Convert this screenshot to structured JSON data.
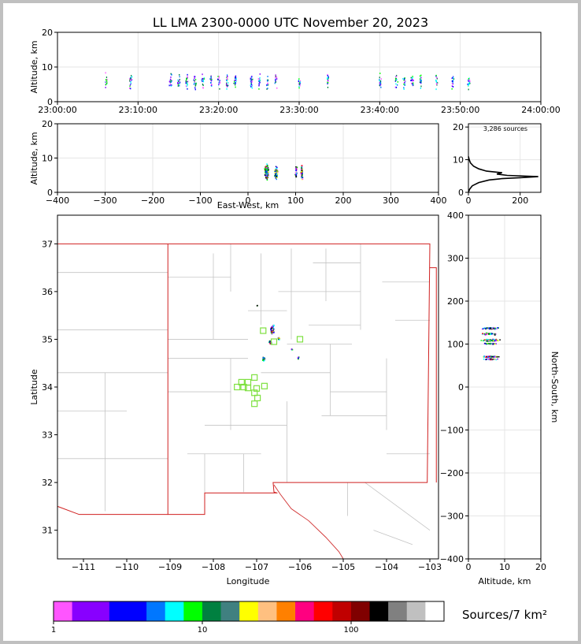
{
  "title": "LL LMA 2300-0000 UTC November 20, 2023",
  "colorbar": {
    "label": "Sources/7 km²",
    "ticks": [
      1,
      10,
      100
    ],
    "colors": [
      "#ff55ff",
      "#8800ff",
      "#8800ff",
      "#0000ff",
      "#0000ff",
      "#0077ff",
      "#00ffff",
      "#00ff00",
      "#008040",
      "#408080",
      "#ffff00",
      "#ffc080",
      "#ff8000",
      "#ff0080",
      "#ff0000",
      "#c00000",
      "#800000",
      "#000000",
      "#808080",
      "#c0c0c0",
      "#ffffff"
    ]
  },
  "chart_data": [
    {
      "type": "scatter",
      "name": "time-height",
      "ylabel": "Altitude, km",
      "ylim": [
        0,
        20
      ],
      "yticks": [
        0,
        10,
        20
      ],
      "xticks": [
        "23:00:00",
        "23:10:00",
        "23:20:00",
        "23:30:00",
        "23:40:00",
        "23:50:00",
        "24:00:00"
      ],
      "xlim_minutes": [
        0,
        60
      ],
      "bursts_minutes": [
        6,
        9,
        14,
        15,
        16,
        17,
        18,
        19,
        20,
        21,
        22,
        24,
        25,
        26,
        27,
        30,
        33.5,
        40,
        42,
        43,
        44,
        45,
        47,
        49,
        51
      ]
    },
    {
      "type": "scatter",
      "name": "eastwest-height",
      "xlabel": "East-West, km",
      "ylabel": "Altitude, km",
      "xlim": [
        -400,
        400
      ],
      "xticks": [
        -400,
        -300,
        -200,
        -100,
        0,
        100,
        200,
        300,
        400
      ],
      "ylim": [
        0,
        20
      ],
      "yticks": [
        0,
        10,
        20
      ],
      "clusters_x_km": [
        35,
        60,
        100,
        110
      ]
    },
    {
      "type": "line",
      "name": "altitude-histogram",
      "annotation": "3,286 sources",
      "xlim": [
        0,
        280
      ],
      "xticks": [
        0,
        200
      ],
      "ylim": [
        0,
        21
      ],
      "yticks": [
        0,
        10,
        20
      ],
      "x": [
        0,
        5,
        15,
        40,
        80,
        130,
        200,
        270,
        150,
        110,
        130,
        70,
        40,
        20,
        8,
        3,
        0
      ],
      "y": [
        0,
        1,
        2,
        3,
        3.8,
        4.2,
        4.5,
        4.8,
        5.2,
        5.6,
        6.0,
        6.5,
        7.2,
        8.0,
        9.0,
        10,
        11
      ]
    },
    {
      "type": "scatter",
      "name": "plan-view",
      "xlabel": "Longitude",
      "ylabel": "Latitude",
      "xlim": [
        -111.6,
        -102.8
      ],
      "ylim": [
        30.4,
        37.6
      ],
      "xticks": [
        -111,
        -110,
        -109,
        -108,
        -107,
        -106,
        -105,
        -104,
        -103
      ],
      "yticks": [
        31,
        32,
        33,
        34,
        35,
        36,
        37
      ],
      "stations": [
        [
          -106.85,
          35.18
        ],
        [
          -106.6,
          34.95
        ],
        [
          -106.0,
          35.0
        ],
        [
          -107.05,
          34.2
        ],
        [
          -107.2,
          34.1
        ],
        [
          -107.3,
          34.0
        ],
        [
          -107.45,
          34.0
        ],
        [
          -107.2,
          33.98
        ],
        [
          -107.0,
          33.97
        ],
        [
          -106.82,
          34.02
        ],
        [
          -107.05,
          33.88
        ],
        [
          -106.98,
          33.77
        ],
        [
          -107.05,
          33.65
        ],
        [
          -107.35,
          34.1
        ]
      ]
    },
    {
      "type": "scatter",
      "name": "height-northsouth",
      "xlabel": "Altitude, km",
      "ylabel": "North-South, km",
      "xlim": [
        0,
        20
      ],
      "xticks": [
        0,
        10,
        20
      ],
      "ylim": [
        -400,
        400
      ],
      "yticks": [
        -400,
        -300,
        -200,
        -100,
        0,
        100,
        200,
        300,
        400
      ]
    }
  ]
}
